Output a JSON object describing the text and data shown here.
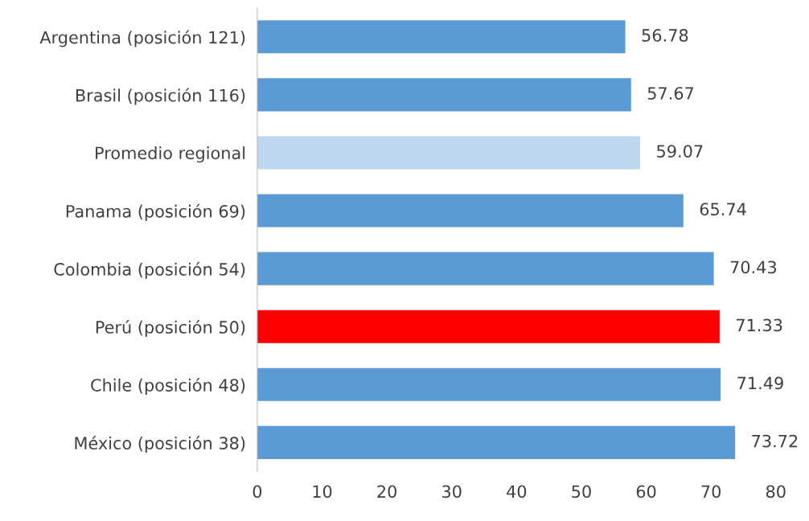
{
  "chart_data": {
    "type": "bar",
    "orientation": "horizontal",
    "categories": [
      "Argentina (posición 121)",
      "Brasil (posición 116)",
      "Promedio regional",
      "Panama (posición 69)",
      "Colombia (posición 54)",
      "Perú (posición 50)",
      "Chile (posición 48)",
      "México (posición 38)"
    ],
    "values": [
      56.78,
      57.67,
      59.07,
      65.74,
      70.43,
      71.33,
      71.49,
      73.72
    ],
    "colors": [
      "#5b9bd5",
      "#5b9bd5",
      "#bdd7ee",
      "#5b9bd5",
      "#5b9bd5",
      "#ff0000",
      "#5b9bd5",
      "#5b9bd5"
    ],
    "xlim": [
      0,
      80
    ],
    "xticks": [
      0,
      10,
      20,
      30,
      40,
      50,
      60,
      70,
      80
    ],
    "grid": false,
    "data_labels": true
  }
}
